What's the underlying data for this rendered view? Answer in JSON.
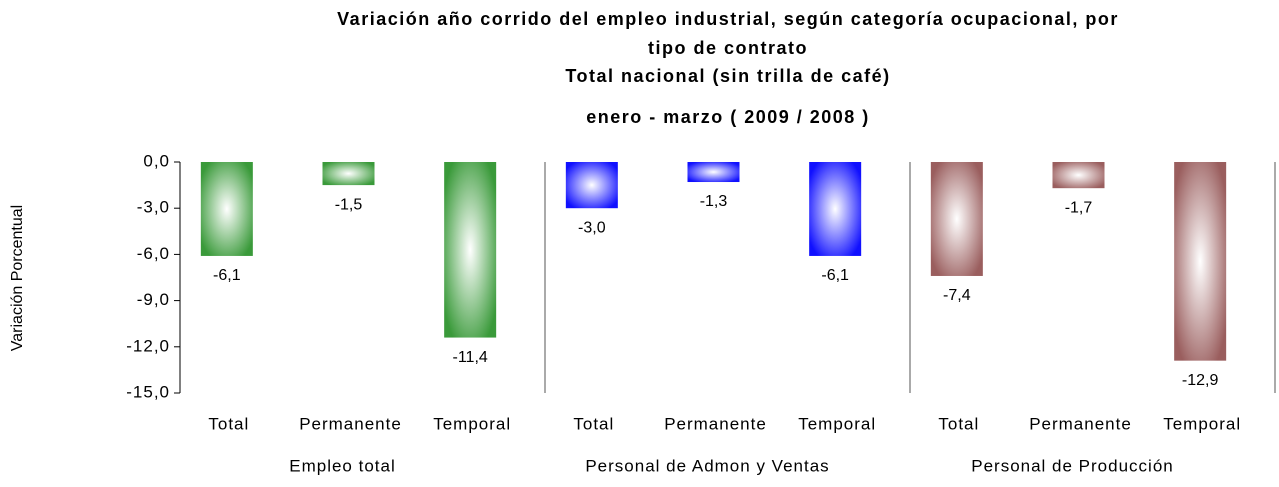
{
  "chart_data": {
    "type": "bar",
    "title": [
      "Variación año corrido del empleo industrial, según categoría ocupacional, por",
      "tipo de contrato",
      "Total nacional (sin trilla de café)",
      "enero - marzo ( 2009 / 2008 )"
    ],
    "y_label": "Variación Porcentual",
    "ylim": [
      -15,
      0
    ],
    "yticks": [
      {
        "value": 0,
        "label": "0,0"
      },
      {
        "value": -3,
        "label": "-3,0"
      },
      {
        "value": -6,
        "label": "-6,0"
      },
      {
        "value": -9,
        "label": "-9,0"
      },
      {
        "value": -12,
        "label": "-12,0"
      },
      {
        "value": -15,
        "label": "-15,0"
      }
    ],
    "groups": [
      {
        "name": "Empleo total",
        "color": "#3a9a3a",
        "categories": [
          "Total",
          "Permanente",
          "Temporal"
        ],
        "values": [
          -6.1,
          -1.5,
          -11.4
        ],
        "value_labels": [
          "-6,1",
          "-1,5",
          "-11,4"
        ]
      },
      {
        "name": "Personal de Admon y Ventas",
        "color": "#1010ff",
        "categories": [
          "Total",
          "Permanente",
          "Temporal"
        ],
        "values": [
          -3.0,
          -1.3,
          -6.1
        ],
        "value_labels": [
          "-3,0",
          "-1,3",
          "-6,1"
        ]
      },
      {
        "name": "Personal de Producción",
        "color": "#9a5e5e",
        "categories": [
          "Total",
          "Permanente",
          "Temporal"
        ],
        "values": [
          -7.4,
          -1.7,
          -12.9
        ],
        "value_labels": [
          "-7,4",
          "-1,7",
          "-12,9"
        ]
      }
    ]
  }
}
